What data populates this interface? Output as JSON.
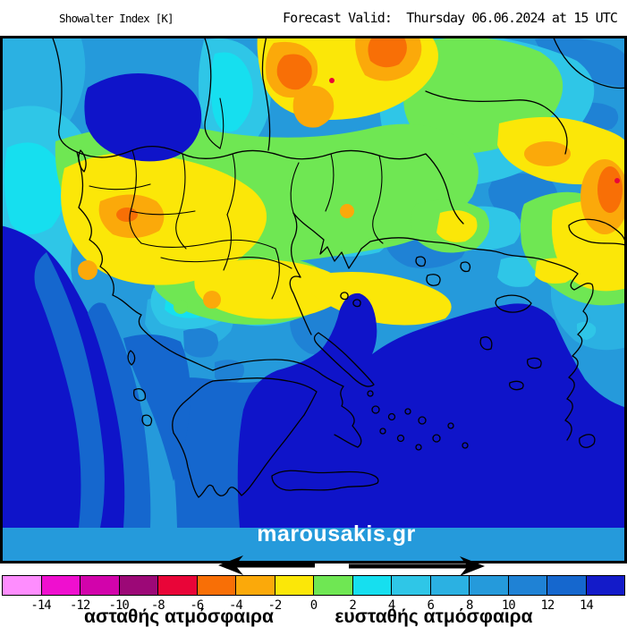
{
  "header": {
    "title_left": "Showalter Index [K]",
    "forecast_valid": "Forecast Valid:  Thursday 06.06.2024 at 15 UTC"
  },
  "map": {
    "watermark": "marousakis.gr",
    "region": "Greece and the Aegean",
    "quantity": "Showalter Index",
    "units": "K"
  },
  "colorbar": {
    "ticks": [
      "-14",
      "-12",
      "-10",
      "-8",
      "-6",
      "-4",
      "-2",
      "0",
      "2",
      "4",
      "6",
      "8",
      "10",
      "12",
      "14"
    ],
    "segment_colors": [
      "#fe8dfe",
      "#ef0fcf",
      "#d203ab",
      "#9c0877",
      "#e90538",
      "#f86f06",
      "#fba90a",
      "#fbe708",
      "#6fe753",
      "#16dfef",
      "#2fc6e7",
      "#2bb1e2",
      "#259adb",
      "#1f82d5",
      "#1567ce",
      "#131bc9"
    ],
    "unstable_label": "ασταθής ατμόσφαιρα",
    "stable_label": "ευσταθής ατμόσφαιρα"
  }
}
